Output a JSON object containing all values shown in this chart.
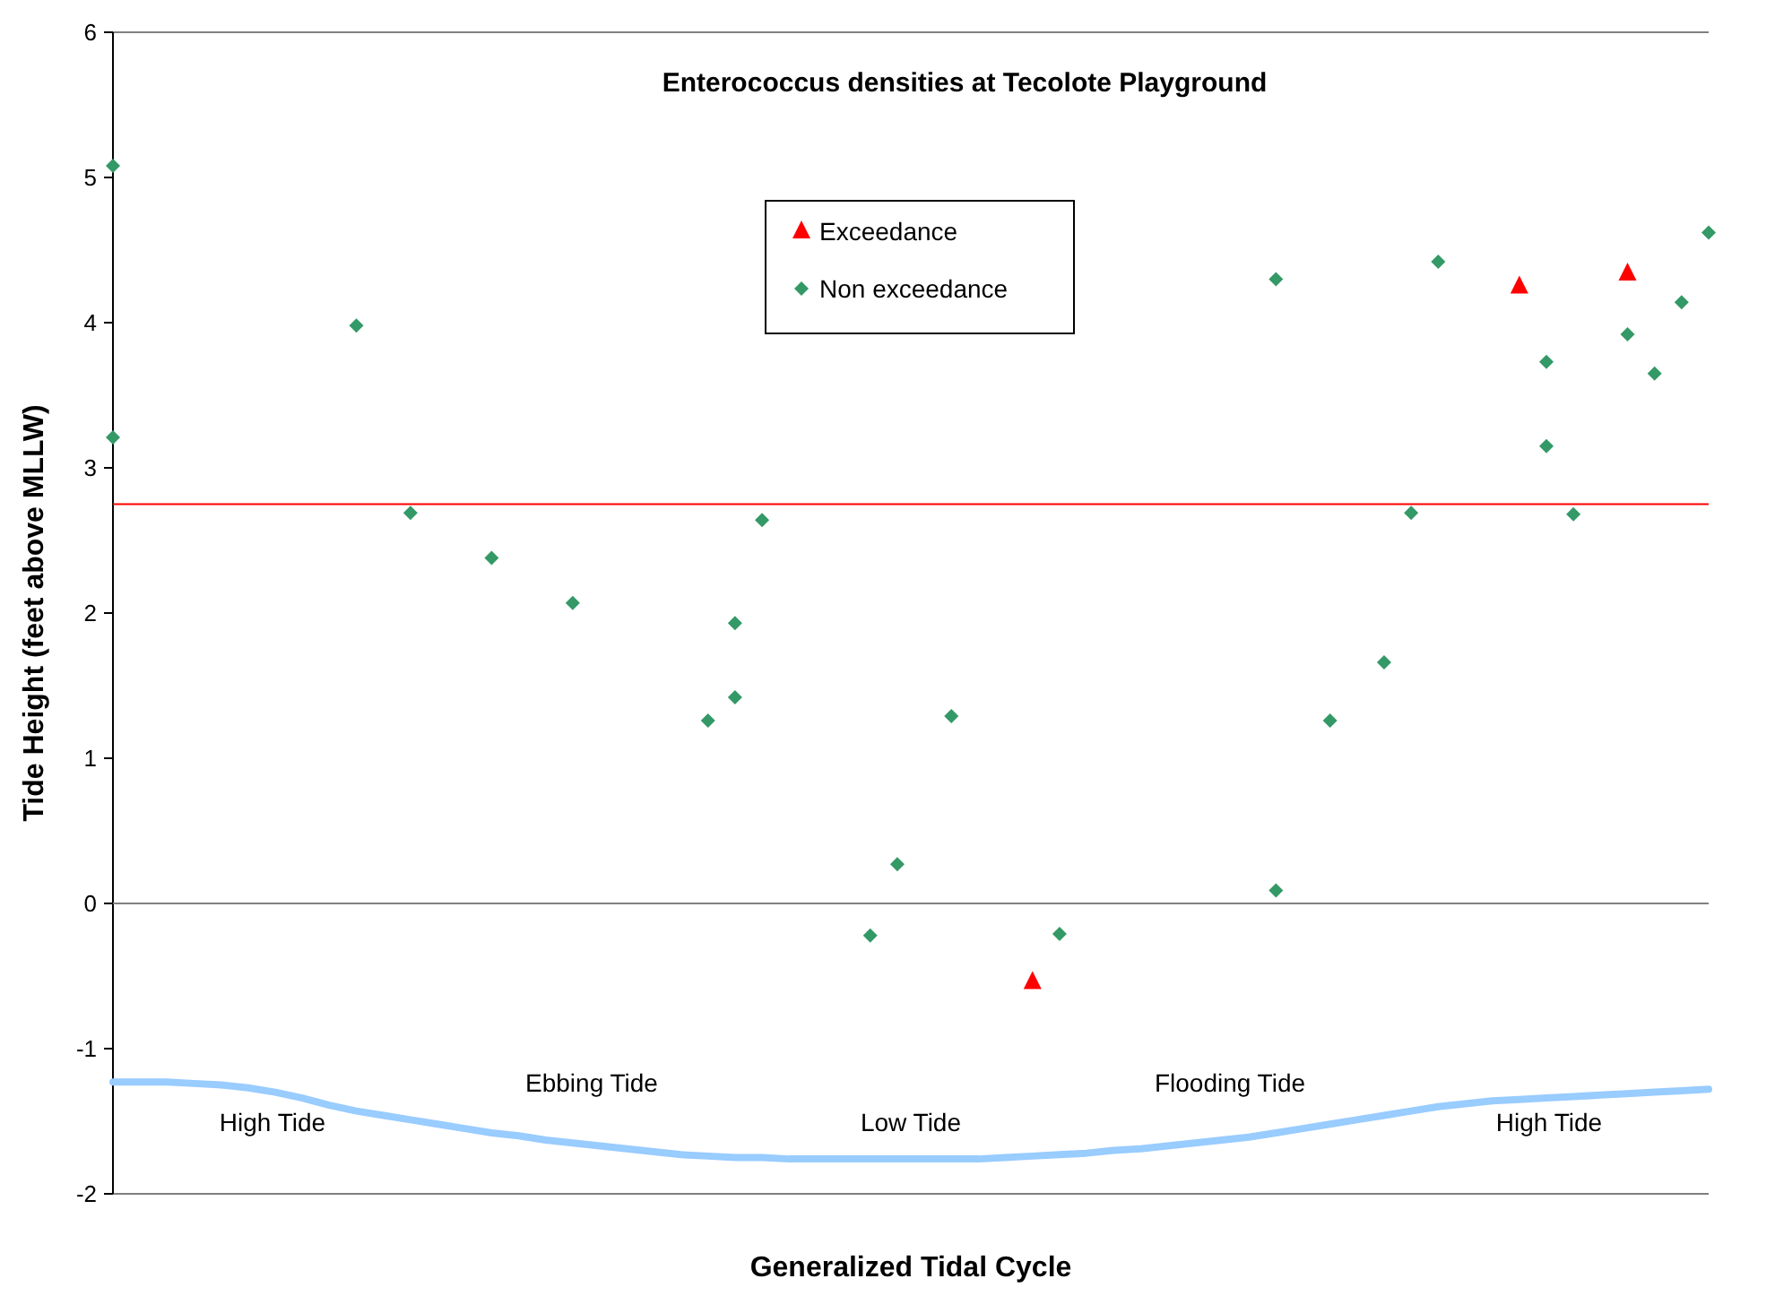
{
  "chart_data": {
    "type": "scatter",
    "title": "Enterococcus densities at  Tecolote Playground",
    "xlabel": "Generalized Tidal Cycle",
    "ylabel": "Tide Height (feet above MLLW)",
    "categories": [
      null,
      null,
      null,
      null,
      null,
      null,
      null,
      null,
      null,
      null,
      null,
      null,
      null,
      null,
      null,
      null,
      null,
      null,
      null,
      null,
      null,
      null,
      null,
      null,
      null,
      null,
      null,
      null,
      null,
      null,
      null,
      null,
      null,
      null,
      null,
      null,
      null,
      null,
      null,
      null,
      null,
      null,
      null,
      null,
      null,
      null,
      null,
      null,
      null,
      null,
      null,
      null,
      null,
      null,
      null,
      null,
      null,
      null,
      null,
      null
    ],
    "ylim": [
      -2,
      6
    ],
    "yticks": [
      -2,
      -1,
      0,
      1,
      2,
      3,
      4,
      5,
      6
    ],
    "tick_labels": "y",
    "grid": false,
    "legend": "top",
    "series": [
      {
        "name": "Exceedance",
        "marker": "triangle",
        "color": "#ff0000",
        "values": [
          null,
          null,
          null,
          null,
          null,
          null,
          null,
          null,
          null,
          null,
          null,
          null,
          null,
          null,
          null,
          null,
          null,
          null,
          null,
          null,
          null,
          null,
          null,
          null,
          null,
          null,
          null,
          null,
          null,
          null,
          null,
          null,
          null,
          null,
          -0.54,
          null,
          null,
          null,
          null,
          null,
          null,
          null,
          null,
          null,
          null,
          null,
          null,
          null,
          null,
          null,
          null,
          null,
          4.25,
          null,
          null,
          null,
          4.34,
          null,
          null,
          null
        ]
      },
      {
        "name": "Non exceedance",
        "marker": "diamond",
        "color": "#339966",
        "values": [
          5.08,
          null,
          null,
          null,
          null,
          null,
          null,
          null,
          null,
          3.98,
          null,
          2.69,
          null,
          null,
          2.38,
          null,
          null,
          2.07,
          null,
          null,
          null,
          null,
          1.26,
          1.93,
          2.64,
          null,
          null,
          null,
          -0.22,
          0.27,
          null,
          1.29,
          null,
          null,
          null,
          -0.21,
          null,
          null,
          null,
          null,
          null,
          null,
          null,
          0.09,
          null,
          1.26,
          null,
          1.66,
          2.69,
          4.42,
          null,
          null,
          null,
          3.73,
          2.68,
          null,
          3.92,
          3.65,
          4.14,
          4.62
        ]
      },
      {
        "marker": "diamond",
        "color": "#339966",
        "values": [
          3.21,
          null,
          null,
          null,
          null,
          null,
          null,
          null,
          null,
          null,
          null,
          null,
          null,
          null,
          null,
          null,
          null,
          null,
          null,
          null,
          null,
          null,
          null,
          1.42,
          null,
          null,
          null,
          null,
          null,
          null,
          null,
          null,
          null,
          null,
          null,
          null,
          null,
          null,
          null,
          null,
          null,
          null,
          null,
          4.3,
          null,
          null,
          null,
          null,
          null,
          null,
          null,
          null,
          null,
          3.15,
          null,
          null,
          null,
          null,
          null,
          null
        ]
      },
      {
        "type": "line",
        "marker": "none",
        "line_style": "solid",
        "color": "#99ccff",
        "values": [
          -1.23,
          -1.23,
          -1.23,
          -1.24,
          -1.25,
          -1.27,
          -1.3,
          -1.34,
          -1.39,
          -1.43,
          -1.46,
          -1.49,
          -1.52,
          -1.55,
          -1.58,
          -1.6,
          -1.63,
          -1.65,
          -1.67,
          -1.69,
          -1.71,
          -1.73,
          -1.74,
          -1.75,
          -1.75,
          -1.76,
          -1.76,
          -1.76,
          -1.76,
          -1.76,
          -1.76,
          -1.76,
          -1.76,
          -1.75,
          -1.74,
          -1.73,
          -1.72,
          -1.7,
          -1.69,
          -1.67,
          -1.65,
          -1.63,
          -1.61,
          -1.58,
          -1.55,
          -1.52,
          -1.49,
          -1.46,
          -1.43,
          -1.4,
          -1.38,
          -1.36,
          -1.35,
          -1.34,
          -1.33,
          -1.32,
          -1.31,
          -1.3,
          -1.29,
          -1.28
        ]
      }
    ],
    "ref_lines": [
      {
        "axis": "y",
        "value": 2.75,
        "color": "#ff0000"
      },
      {
        "axis": "y",
        "value": 0,
        "color": "#808080"
      }
    ],
    "annotations": [
      "High Tide",
      "Ebbing Tide",
      "Low Tide",
      "Flooding Tide",
      "High Tide"
    ]
  }
}
